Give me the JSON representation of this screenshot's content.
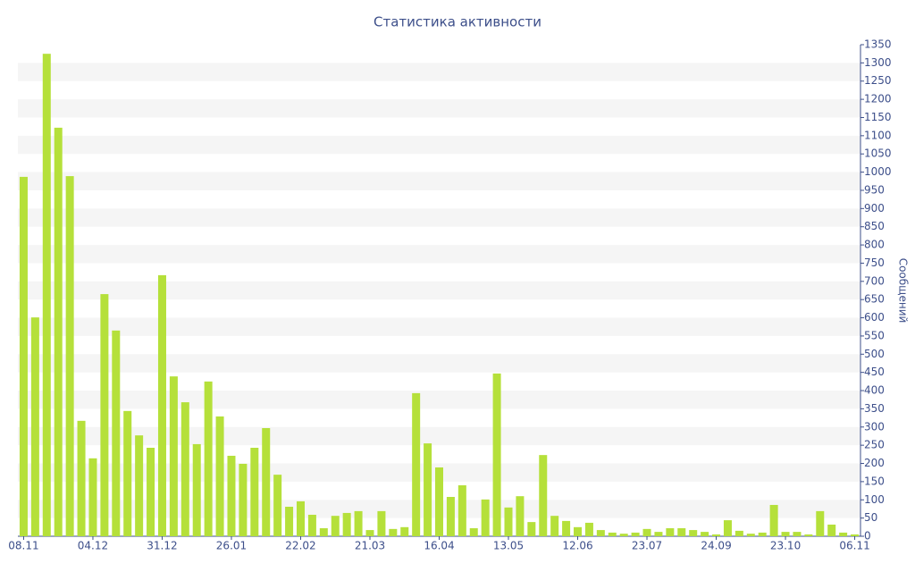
{
  "chart_data": {
    "type": "bar",
    "title": "Статистика активности",
    "y_axis_label": "Сообщений",
    "categories": [
      "08.11",
      null,
      null,
      null,
      null,
      null,
      "04.12",
      null,
      null,
      null,
      null,
      null,
      "31.12",
      null,
      null,
      null,
      null,
      null,
      "26.01",
      null,
      null,
      null,
      null,
      null,
      "22.02",
      null,
      null,
      null,
      null,
      null,
      "21.03",
      null,
      null,
      null,
      null,
      null,
      "16.04",
      null,
      null,
      null,
      null,
      null,
      "13.05",
      null,
      null,
      null,
      null,
      null,
      "12.06",
      null,
      null,
      null,
      null,
      null,
      "23.07",
      null,
      null,
      null,
      null,
      null,
      "24.09",
      null,
      null,
      null,
      null,
      null,
      "23.10",
      null,
      null,
      null,
      null,
      null,
      "06.11"
    ],
    "values": [
      987,
      601,
      1325,
      1122,
      989,
      317,
      214,
      665,
      565,
      344,
      277,
      243,
      717,
      439,
      368,
      253,
      425,
      329,
      221,
      199,
      243,
      297,
      169,
      81,
      96,
      59,
      22,
      56,
      64,
      69,
      17,
      69,
      20,
      25,
      393,
      255,
      189,
      108,
      140,
      22,
      101,
      447,
      79,
      110,
      39,
      223,
      56,
      42,
      25,
      37,
      17,
      10,
      7,
      10,
      20,
      12,
      22,
      22,
      17,
      12,
      5,
      44,
      15,
      7,
      10,
      86,
      12,
      12,
      5,
      69,
      32,
      10,
      5
    ],
    "color": "#b5e03a",
    "ylim": [
      0,
      1350
    ],
    "yticks": [
      0,
      50,
      100,
      150,
      200,
      250,
      300,
      350,
      400,
      450,
      500,
      550,
      600,
      650,
      700,
      750,
      800,
      850,
      900,
      950,
      1000,
      1050,
      1100,
      1150,
      1200,
      1250,
      1300,
      1350
    ],
    "grid": true
  }
}
